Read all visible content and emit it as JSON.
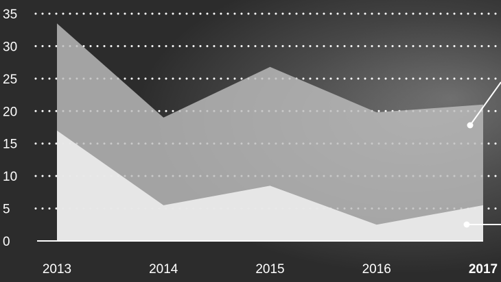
{
  "chart_data": {
    "type": "area",
    "x": [
      "2013",
      "2014",
      "2015",
      "2016",
      "2017"
    ],
    "highlight_x": "2017",
    "ylim": [
      0,
      35
    ],
    "yticks": [
      0,
      5,
      10,
      15,
      20,
      25,
      30,
      35
    ],
    "grid": true,
    "series": [
      {
        "values": [
          33.5,
          19,
          26.8,
          19.8,
          21
        ],
        "color": "#bdbdbd"
      },
      {
        "values": [
          17,
          5.5,
          8.5,
          2.5,
          5.5
        ],
        "color": "#ececec"
      }
    ],
    "colors": {
      "background": "#2f2f2f",
      "text": "#ffffff",
      "grid": "#ffffff"
    }
  }
}
